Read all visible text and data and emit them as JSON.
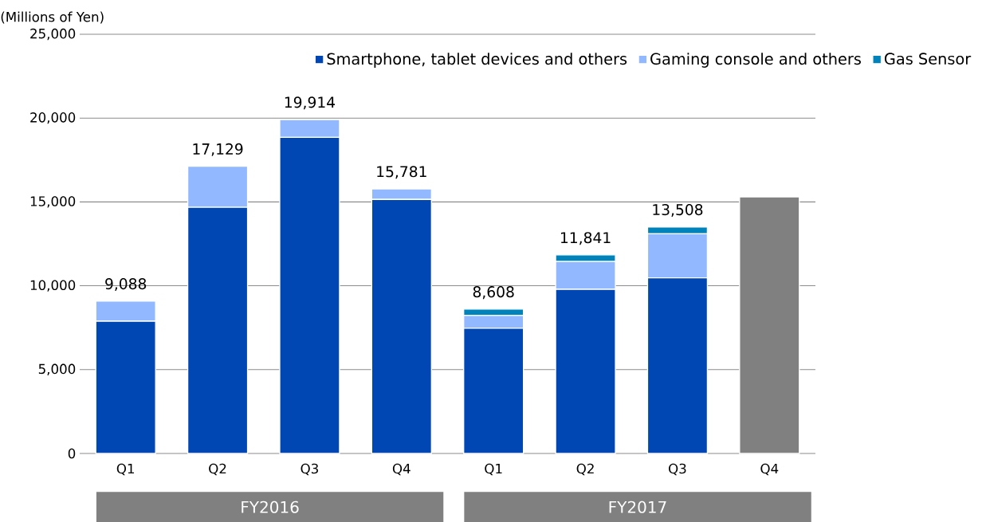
{
  "chart_data": {
    "type": "bar",
    "stacked": true,
    "ylabel": "(Millions of Yen)",
    "categories": [
      "Q1",
      "Q2",
      "Q3",
      "Q4",
      "Q1",
      "Q2",
      "Q3",
      "Q4"
    ],
    "series": [
      {
        "name": "Smartphone, tablet devices and others",
        "color": "#0047b3",
        "values": [
          7890,
          14680,
          18850,
          15150,
          7470,
          9790,
          10470,
          null
        ]
      },
      {
        "name": "Gaming console and others",
        "color": "#92b9ff",
        "values": [
          1200,
          2450,
          1064,
          630,
          760,
          1660,
          2630,
          null
        ]
      },
      {
        "name": "Gas Sensor",
        "color": "#0083bb",
        "values": [
          null,
          null,
          null,
          null,
          380,
          390,
          410,
          null
        ]
      },
      {
        "color": "#808080",
        "values": [
          null,
          null,
          null,
          null,
          null,
          null,
          null,
          15300
        ]
      }
    ],
    "totals": [
      "9,088",
      "17,129",
      "19,914",
      "15,781",
      "8,608",
      "11,841",
      "13,508",
      null
    ],
    "ylim": [
      0,
      25000
    ],
    "yticks": [
      {
        "value": 0,
        "label": "0"
      },
      {
        "value": 5000,
        "label": "5,000"
      },
      {
        "value": 10000,
        "label": "10,000"
      },
      {
        "value": 15000,
        "label": "15,000"
      },
      {
        "value": 20000,
        "label": "20,000"
      },
      {
        "value": 25000,
        "label": "25,000"
      }
    ],
    "grid": "y",
    "legend": "top right",
    "annotations": [
      "FY2016",
      "FY2017"
    ]
  }
}
